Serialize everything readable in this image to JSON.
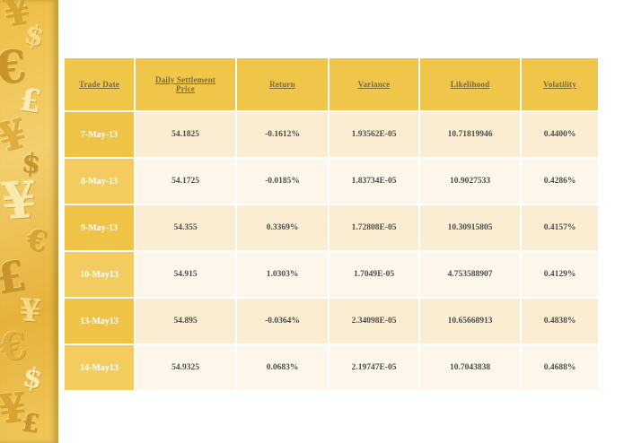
{
  "sidebar": {
    "description": "collage of embossed currency symbols",
    "symbols": [
      "¥",
      "$",
      "€",
      "£",
      "¥",
      "$",
      "¥",
      "€",
      "£",
      "¥",
      "€",
      "$",
      "¥",
      "£"
    ]
  },
  "table": {
    "columns": [
      "Trade Date",
      "Daily Settlement Price",
      "Return",
      "Variance",
      "Likelihood",
      "Volatility"
    ],
    "rows": [
      {
        "trade_date": "7-May-13",
        "settlement_price": "54.1825",
        "return": "-0.1612%",
        "variance": "1.93562E-05",
        "likelihood": "10.71819946",
        "volatility": "0.4400%"
      },
      {
        "trade_date": "8-May-13",
        "settlement_price": "54.1725",
        "return": "-0.0185%",
        "variance": "1.83734E-05",
        "likelihood": "10.9027533",
        "volatility": "0.4286%"
      },
      {
        "trade_date": "9-May-13",
        "settlement_price": "54.355",
        "return": "0.3369%",
        "variance": "1.72808E-05",
        "likelihood": "10.30915805",
        "volatility": "0.4157%"
      },
      {
        "trade_date": "10-May13",
        "settlement_price": "54.915",
        "return": "1.0303%",
        "variance": "1.7049E-05",
        "likelihood": "4.753588907",
        "volatility": "0.4129%"
      },
      {
        "trade_date": "13-May13",
        "settlement_price": "54.895",
        "return": "-0.0364%",
        "variance": "2.34098E-05",
        "likelihood": "10.65668913",
        "volatility": "0.4838%"
      },
      {
        "trade_date": "14-May13",
        "settlement_price": "54.9325",
        "return": "0.0683%",
        "variance": "2.19747E-05",
        "likelihood": "10.7043838",
        "volatility": "0.4688%"
      }
    ]
  },
  "colors": {
    "gold": "#F0C64A",
    "header_text": "#7D6C3A",
    "row_dark": "#FAEDD2",
    "row_light": "#FDF7EB",
    "data_text": "#4D4D4D"
  }
}
